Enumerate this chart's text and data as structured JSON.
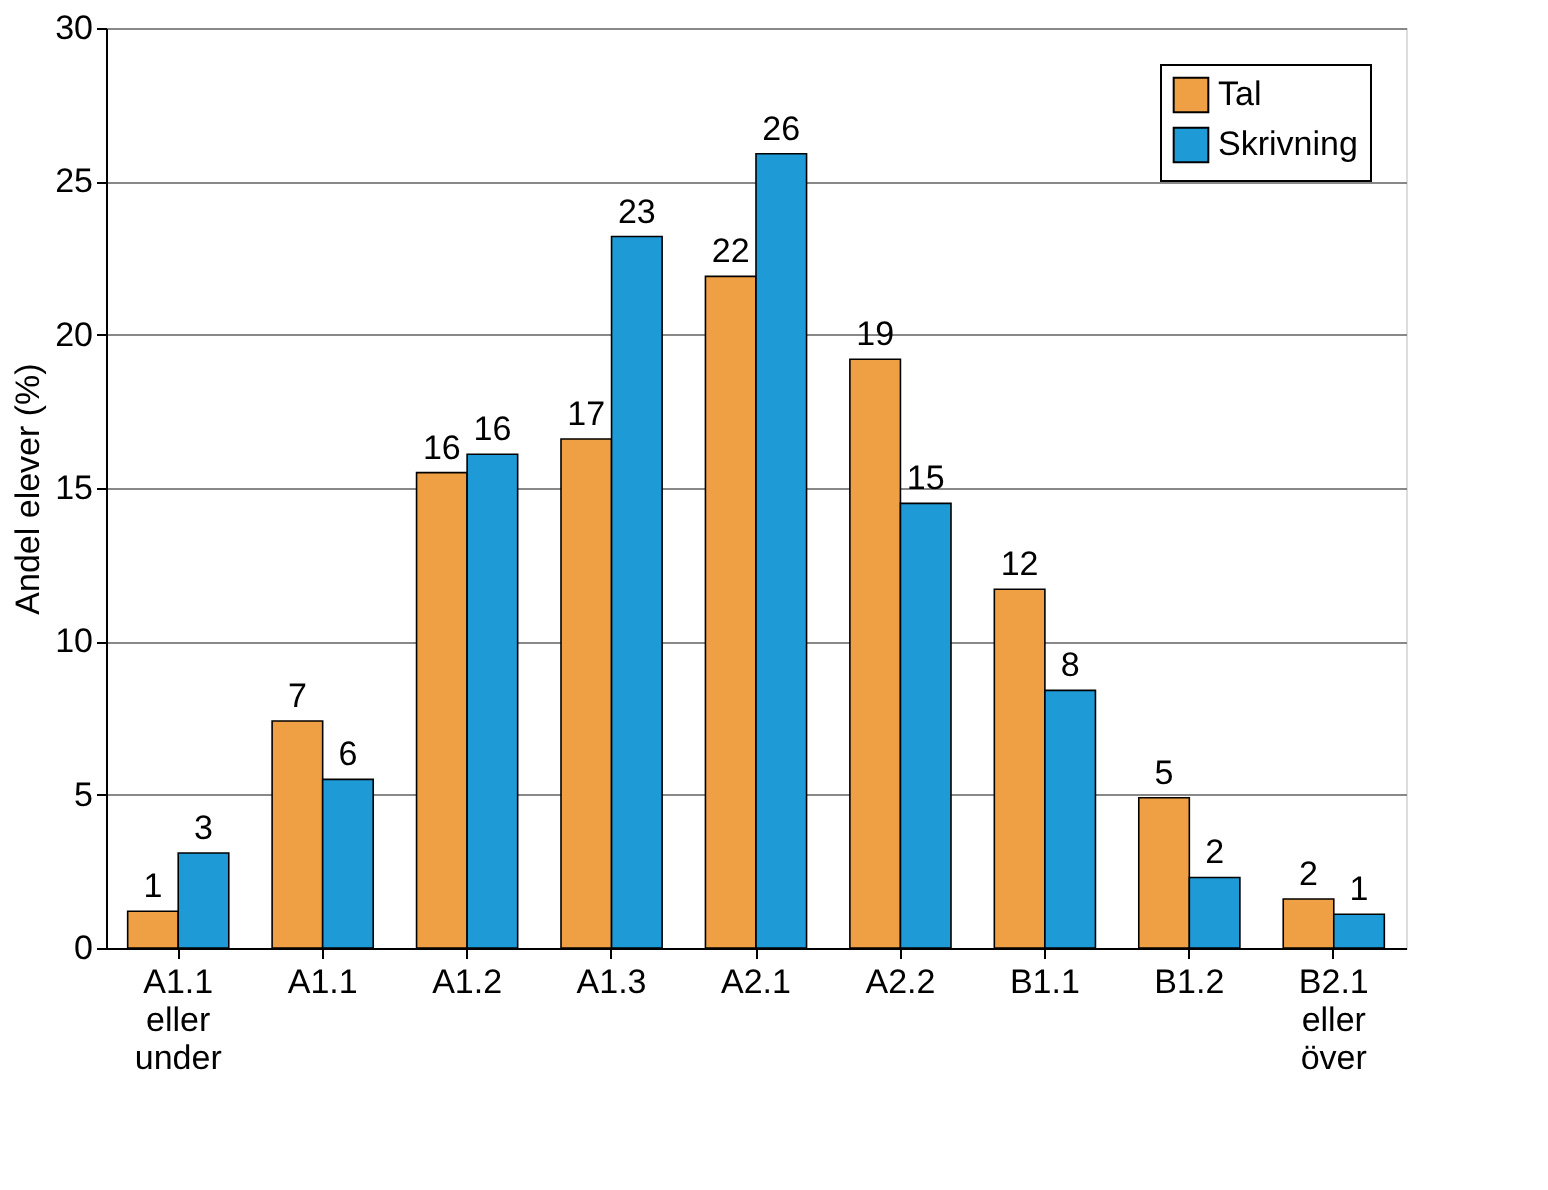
{
  "chart_data": {
    "type": "bar",
    "ylabel": "Andel elever (%)",
    "categories": [
      "A1.1\neller\nunder",
      "A1.1",
      "A1.2",
      "A1.3",
      "A2.1",
      "A2.2",
      "B1.1",
      "B1.2",
      "B2.1\neller\növer"
    ],
    "series": [
      {
        "name": "Tal",
        "color": "#f0a044",
        "values": [
          1.2,
          7.4,
          15.5,
          16.6,
          21.9,
          19.2,
          11.7,
          4.9,
          1.6
        ],
        "value_labels": [
          "1",
          "7",
          "16",
          "17",
          "22",
          "19",
          "12",
          "5",
          "2"
        ]
      },
      {
        "name": "Skrivning",
        "color": "#1e9ad6",
        "values": [
          3.1,
          5.5,
          16.1,
          23.2,
          25.9,
          14.5,
          8.4,
          2.3,
          1.1
        ],
        "value_labels": [
          "3",
          "6",
          "16",
          "23",
          "26",
          "15",
          "8",
          "2",
          "1"
        ]
      }
    ],
    "ylim": [
      0,
      30
    ],
    "yticks": [
      0,
      5,
      10,
      15,
      20,
      25,
      30
    ],
    "grid": "y",
    "legend": "top right"
  }
}
